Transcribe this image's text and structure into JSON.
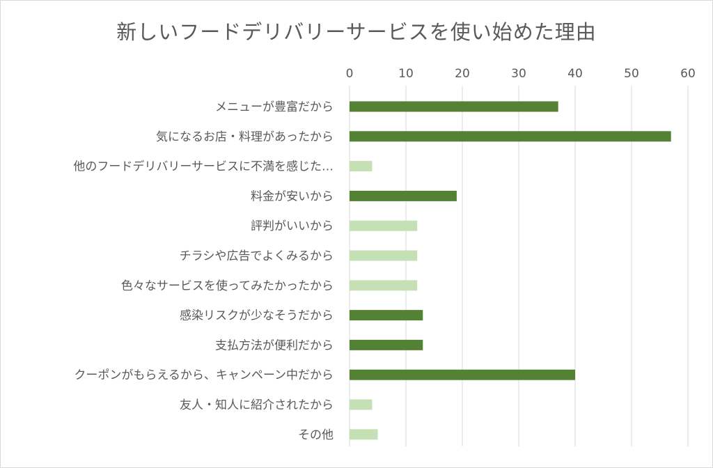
{
  "chart_data": {
    "type": "bar",
    "orientation": "horizontal",
    "title": "新しいフードデリバリーサービスを使い始めた理由",
    "categories": [
      "メニューが豊富だから",
      "気になるお店・料理があったから",
      "他のフードデリバリーサービスに不満を感じた…",
      "料金が安いから",
      "評判がいいから",
      "チラシや広告でよくみるから",
      "色々なサービスを使ってみたかったから",
      "感染リスクが少なそうだから",
      "支払方法が便利だから",
      "クーポンがもらえるから、キャンペーン中だから",
      "友人・知人に紹介されたから",
      "その他"
    ],
    "values": [
      37,
      57,
      4,
      19,
      12,
      12,
      12,
      13,
      13,
      40,
      4,
      5
    ],
    "bar_colors": [
      "#548235",
      "#548235",
      "#c5e0b4",
      "#548235",
      "#c5e0b4",
      "#c5e0b4",
      "#c5e0b4",
      "#548235",
      "#548235",
      "#548235",
      "#c5e0b4",
      "#c5e0b4"
    ],
    "xlim": [
      0,
      60
    ],
    "xticks": [
      0,
      10,
      20,
      30,
      40,
      50,
      60
    ],
    "xaxis_position": "top",
    "grid": true,
    "gridline_color": "#d9d9d9",
    "text_color": "#595959",
    "legend": "none"
  }
}
